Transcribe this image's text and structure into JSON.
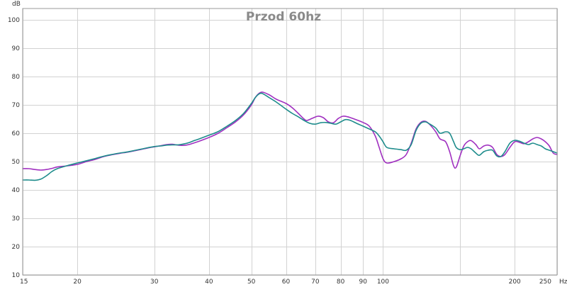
{
  "chart_data": {
    "type": "line",
    "title": "Przod 60hz",
    "y_unit": "dB",
    "x_unit": "Hz",
    "x_scale": "log",
    "xlim": [
      15,
      250
    ],
    "ylim": [
      10,
      104
    ],
    "grid": true,
    "x_ticks": [
      15,
      20,
      30,
      40,
      50,
      60,
      70,
      80,
      90,
      100,
      200,
      250
    ],
    "x_minor_grid": [
      150
    ],
    "y_ticks": [
      10,
      20,
      30,
      40,
      50,
      60,
      70,
      80,
      90,
      100
    ],
    "series": [
      {
        "color": "#a030c0",
        "points": [
          [
            15,
            47.5
          ],
          [
            15.5,
            47.5
          ],
          [
            16,
            47.2
          ],
          [
            16.5,
            47.0
          ],
          [
            17,
            47.2
          ],
          [
            17.5,
            47.6
          ],
          [
            18,
            48.1
          ],
          [
            19,
            48.5
          ],
          [
            20,
            49.0
          ],
          [
            21,
            50.0
          ],
          [
            22,
            50.8
          ],
          [
            23,
            51.8
          ],
          [
            24,
            52.4
          ],
          [
            25,
            52.9
          ],
          [
            26,
            53.3
          ],
          [
            27,
            53.8
          ],
          [
            28,
            54.3
          ],
          [
            29,
            54.8
          ],
          [
            30,
            55.2
          ],
          [
            31,
            55.6
          ],
          [
            32,
            56.0
          ],
          [
            33,
            56.1
          ],
          [
            34,
            55.8
          ],
          [
            35,
            55.7
          ],
          [
            36,
            56.0
          ],
          [
            37,
            56.6
          ],
          [
            38,
            57.2
          ],
          [
            40,
            58.5
          ],
          [
            42,
            60.0
          ],
          [
            44,
            62.0
          ],
          [
            46,
            64.0
          ],
          [
            48,
            66.5
          ],
          [
            50,
            70.0
          ],
          [
            51,
            72.5
          ],
          [
            52,
            74.0
          ],
          [
            53,
            74.5
          ],
          [
            55,
            73.5
          ],
          [
            57,
            72.0
          ],
          [
            60,
            70.5
          ],
          [
            62,
            69.0
          ],
          [
            64,
            67.0
          ],
          [
            66,
            65.0
          ],
          [
            67,
            64.5
          ],
          [
            69,
            65.3
          ],
          [
            71,
            66.0
          ],
          [
            73,
            65.5
          ],
          [
            75,
            64.0
          ],
          [
            77,
            63.7
          ],
          [
            79,
            65.2
          ],
          [
            81,
            66.0
          ],
          [
            83,
            65.8
          ],
          [
            86,
            65.0
          ],
          [
            90,
            63.8
          ],
          [
            93,
            62.5
          ],
          [
            96,
            59.0
          ],
          [
            98,
            55.0
          ],
          [
            100,
            51.0
          ],
          [
            102,
            49.5
          ],
          [
            106,
            50.0
          ],
          [
            110,
            51.0
          ],
          [
            113,
            52.5
          ],
          [
            116,
            56.5
          ],
          [
            119,
            61.5
          ],
          [
            122,
            63.8
          ],
          [
            125,
            64.2
          ],
          [
            128,
            63.0
          ],
          [
            132,
            60.5
          ],
          [
            135,
            58.0
          ],
          [
            139,
            57.0
          ],
          [
            142,
            53.5
          ],
          [
            145,
            48.5
          ],
          [
            147,
            48.0
          ],
          [
            150,
            52.0
          ],
          [
            153,
            55.5
          ],
          [
            156,
            57.0
          ],
          [
            159,
            57.4
          ],
          [
            163,
            56.0
          ],
          [
            166,
            54.5
          ],
          [
            170,
            55.5
          ],
          [
            174,
            55.8
          ],
          [
            178,
            55.0
          ],
          [
            182,
            52.5
          ],
          [
            186,
            51.8
          ],
          [
            190,
            52.5
          ],
          [
            195,
            55.0
          ],
          [
            200,
            57.0
          ],
          [
            205,
            56.8
          ],
          [
            210,
            56.3
          ],
          [
            215,
            57.0
          ],
          [
            220,
            58.0
          ],
          [
            225,
            58.5
          ],
          [
            230,
            58.0
          ],
          [
            235,
            57.0
          ],
          [
            240,
            55.5
          ],
          [
            245,
            53.0
          ],
          [
            250,
            52.5
          ]
        ]
      },
      {
        "color": "#1e8c8c",
        "points": [
          [
            15,
            43.5
          ],
          [
            15.5,
            43.5
          ],
          [
            16,
            43.4
          ],
          [
            16.5,
            43.8
          ],
          [
            17,
            45.0
          ],
          [
            17.5,
            46.5
          ],
          [
            18,
            47.5
          ],
          [
            19,
            48.6
          ],
          [
            20,
            49.5
          ],
          [
            21,
            50.3
          ],
          [
            22,
            51.1
          ],
          [
            23,
            51.9
          ],
          [
            24,
            52.5
          ],
          [
            25,
            53.0
          ],
          [
            26,
            53.4
          ],
          [
            27,
            53.9
          ],
          [
            28,
            54.4
          ],
          [
            29,
            54.9
          ],
          [
            30,
            55.3
          ],
          [
            31,
            55.5
          ],
          [
            32,
            55.8
          ],
          [
            33,
            55.9
          ],
          [
            34,
            55.9
          ],
          [
            35,
            56.2
          ],
          [
            36,
            56.7
          ],
          [
            37,
            57.4
          ],
          [
            38,
            58.0
          ],
          [
            40,
            59.3
          ],
          [
            42,
            60.6
          ],
          [
            44,
            62.5
          ],
          [
            46,
            64.5
          ],
          [
            48,
            67.0
          ],
          [
            50,
            70.5
          ],
          [
            51,
            72.5
          ],
          [
            52,
            73.8
          ],
          [
            53,
            74.0
          ],
          [
            55,
            72.5
          ],
          [
            57,
            71.0
          ],
          [
            60,
            68.5
          ],
          [
            62,
            67.0
          ],
          [
            64,
            65.8
          ],
          [
            66,
            64.5
          ],
          [
            68,
            63.5
          ],
          [
            70,
            63.2
          ],
          [
            72,
            63.7
          ],
          [
            74,
            63.8
          ],
          [
            76,
            63.5
          ],
          [
            78,
            63.2
          ],
          [
            80,
            64.0
          ],
          [
            82,
            64.8
          ],
          [
            84,
            64.6
          ],
          [
            87,
            63.5
          ],
          [
            90,
            62.5
          ],
          [
            93,
            61.5
          ],
          [
            96,
            60.5
          ],
          [
            98,
            59.0
          ],
          [
            100,
            57.0
          ],
          [
            102,
            55.0
          ],
          [
            106,
            54.5
          ],
          [
            110,
            54.2
          ],
          [
            113,
            54.0
          ],
          [
            116,
            56.0
          ],
          [
            119,
            61.0
          ],
          [
            122,
            63.5
          ],
          [
            125,
            64.0
          ],
          [
            128,
            63.2
          ],
          [
            132,
            61.8
          ],
          [
            135,
            60.0
          ],
          [
            139,
            60.5
          ],
          [
            142,
            60.0
          ],
          [
            145,
            57.0
          ],
          [
            147,
            55.0
          ],
          [
            150,
            54.2
          ],
          [
            153,
            54.5
          ],
          [
            156,
            55.0
          ],
          [
            159,
            54.5
          ],
          [
            163,
            53.0
          ],
          [
            166,
            52.2
          ],
          [
            170,
            53.5
          ],
          [
            174,
            54.0
          ],
          [
            178,
            54.0
          ],
          [
            182,
            52.0
          ],
          [
            186,
            51.8
          ],
          [
            190,
            53.5
          ],
          [
            195,
            56.5
          ],
          [
            200,
            57.5
          ],
          [
            205,
            57.2
          ],
          [
            210,
            56.5
          ],
          [
            215,
            56.0
          ],
          [
            220,
            56.5
          ],
          [
            225,
            56.0
          ],
          [
            230,
            55.5
          ],
          [
            235,
            54.5
          ],
          [
            240,
            54.0
          ],
          [
            245,
            53.5
          ],
          [
            250,
            53.0
          ]
        ]
      }
    ]
  }
}
